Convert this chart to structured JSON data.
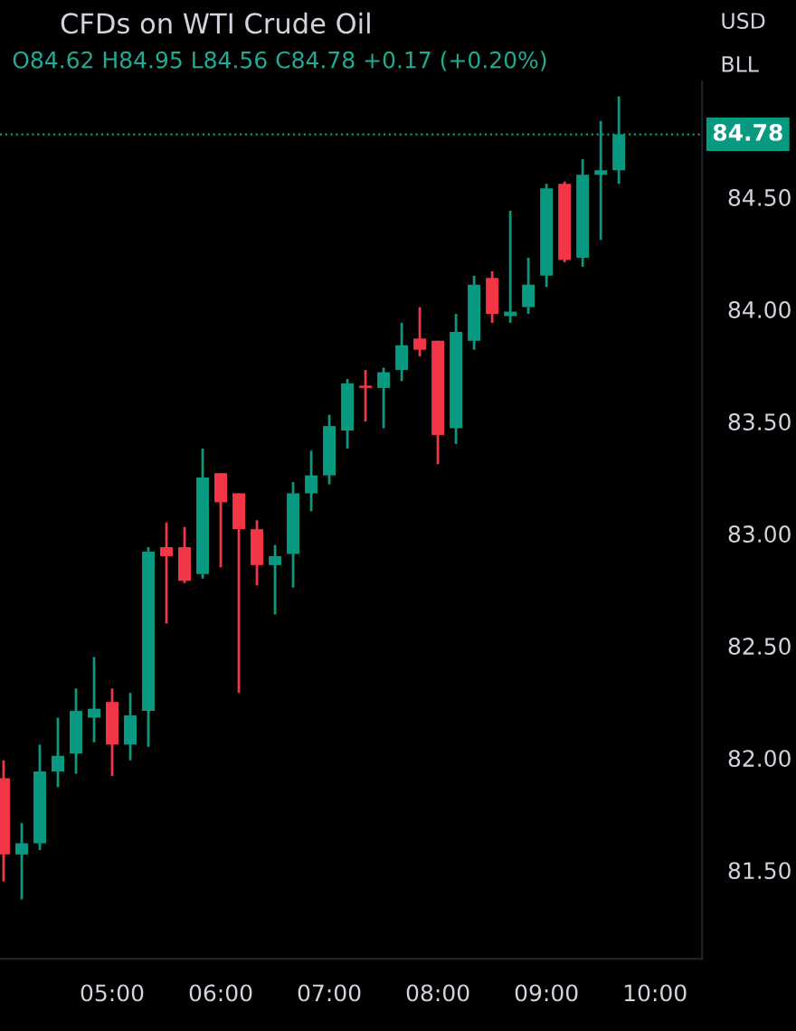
{
  "chart_data": {
    "type": "candlestick",
    "title": "CFDs on WTI Crude Oil",
    "subtitle": "O84.62 H84.95 L84.56 C84.78 +0.17 (+0.20%)",
    "annotations": [
      "USD",
      "BLL"
    ],
    "x": [
      4.0,
      4.1667,
      4.3333,
      4.5,
      4.6667,
      4.8333,
      5.0,
      5.1667,
      5.3333,
      5.5,
      5.6667,
      5.8333,
      6.0,
      6.1667,
      6.3333,
      6.5,
      6.6667,
      6.8333,
      7.0,
      7.1667,
      7.3333,
      7.5,
      7.6667,
      7.8333,
      8.0,
      8.1667,
      8.3333,
      8.5,
      8.6667,
      8.8333,
      9.0,
      9.1667,
      9.3333,
      9.5,
      9.6667
    ],
    "ohlc": [
      [
        81.91,
        81.99,
        81.45,
        81.57
      ],
      [
        81.57,
        81.71,
        81.37,
        81.62
      ],
      [
        81.62,
        82.06,
        81.59,
        81.94
      ],
      [
        81.94,
        82.18,
        81.87,
        82.01
      ],
      [
        82.02,
        82.31,
        81.93,
        82.21
      ],
      [
        82.18,
        82.45,
        82.07,
        82.22
      ],
      [
        82.25,
        82.31,
        81.92,
        82.06
      ],
      [
        82.06,
        82.29,
        81.99,
        82.19
      ],
      [
        82.21,
        82.94,
        82.05,
        82.92
      ],
      [
        82.94,
        83.05,
        82.6,
        82.9
      ],
      [
        82.94,
        83.03,
        82.78,
        82.79
      ],
      [
        82.82,
        83.38,
        82.8,
        83.25
      ],
      [
        83.27,
        83.27,
        82.85,
        83.14
      ],
      [
        83.18,
        83.18,
        82.29,
        83.02
      ],
      [
        83.02,
        83.06,
        82.77,
        82.86
      ],
      [
        82.86,
        82.95,
        82.64,
        82.9
      ],
      [
        82.91,
        83.23,
        82.76,
        83.18
      ],
      [
        83.18,
        83.37,
        83.1,
        83.26
      ],
      [
        83.26,
        83.53,
        83.22,
        83.48
      ],
      [
        83.46,
        83.69,
        83.38,
        83.67
      ],
      [
        83.66,
        83.73,
        83.5,
        83.65
      ],
      [
        83.65,
        83.74,
        83.47,
        83.72
      ],
      [
        83.73,
        83.94,
        83.68,
        83.84
      ],
      [
        83.87,
        84.01,
        83.79,
        83.82
      ],
      [
        83.86,
        83.86,
        83.31,
        83.44
      ],
      [
        83.47,
        83.98,
        83.4,
        83.9
      ],
      [
        83.86,
        84.15,
        83.82,
        84.11
      ],
      [
        84.14,
        84.17,
        83.94,
        83.98
      ],
      [
        83.97,
        84.44,
        83.94,
        83.99
      ],
      [
        84.01,
        84.23,
        83.98,
        84.11
      ],
      [
        84.15,
        84.56,
        84.1,
        84.54
      ],
      [
        84.56,
        84.57,
        84.21,
        84.22
      ],
      [
        84.23,
        84.67,
        84.19,
        84.6
      ],
      [
        84.6,
        84.84,
        84.31,
        84.62
      ],
      [
        84.62,
        84.95,
        84.56,
        84.78
      ]
    ],
    "colors": [
      "#f23645",
      "#089981",
      "#089981",
      "#089981",
      "#089981",
      "#089981",
      "#f23645",
      "#089981",
      "#089981",
      "#f23645",
      "#f23645",
      "#089981",
      "#f23645",
      "#f23645",
      "#f23645",
      "#089981",
      "#089981",
      "#089981",
      "#089981",
      "#089981",
      "#f23645",
      "#089981",
      "#089981",
      "#f23645",
      "#f23645",
      "#089981",
      "#089981",
      "#f23645",
      "#089981",
      "#089981",
      "#089981",
      "#f23645",
      "#089981",
      "#089981",
      "#089981"
    ],
    "xlim": [
      3.967,
      10.433
    ],
    "ylim": [
      81.105,
      85.016
    ],
    "xticks": [
      {
        "value": 5,
        "label": "05:00"
      },
      {
        "value": 6,
        "label": "06:00"
      },
      {
        "value": 7,
        "label": "07:00"
      },
      {
        "value": 8,
        "label": "08:00"
      },
      {
        "value": 9,
        "label": "09:00"
      },
      {
        "value": 10,
        "label": "10:00"
      }
    ],
    "yticks": [
      {
        "value": 81.5,
        "label": "81.50"
      },
      {
        "value": 82,
        "label": "82.00"
      },
      {
        "value": 82.5,
        "label": "82.50"
      },
      {
        "value": 83,
        "label": "83.00"
      },
      {
        "value": 83.5,
        "label": "83.50"
      },
      {
        "value": 84,
        "label": "84.00"
      },
      {
        "value": 84.5,
        "label": "84.50"
      }
    ],
    "ref_lines": [
      {
        "axis": "y",
        "value": 84.78,
        "label": "84.78",
        "color": "#089981",
        "line_style": "dotted"
      }
    ],
    "grid": false
  }
}
